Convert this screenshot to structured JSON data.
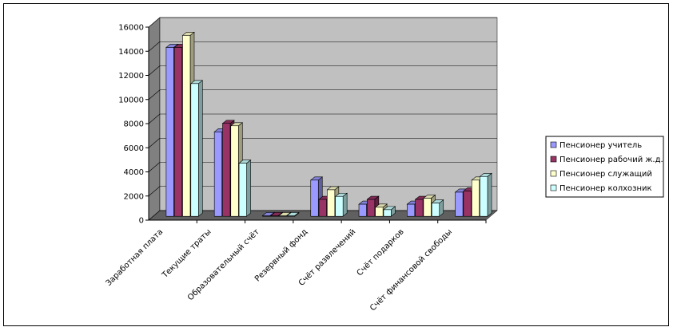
{
  "chart_data": {
    "type": "bar",
    "title": "",
    "xlabel": "",
    "ylabel": "",
    "ylim": [
      0,
      16000
    ],
    "yticks": [
      "0",
      "2000",
      "4000",
      "6000",
      "8000",
      "10000",
      "12000",
      "14000",
      "16000"
    ],
    "grid": true,
    "legend_position": "right",
    "categories": [
      "Заработная плата",
      "Текущие траты",
      "Образовательный счёт",
      "Резервный фонд",
      "Счёт развлечений",
      "Счёт подарков",
      "Счёт финансовой свободы"
    ],
    "series": [
      {
        "name": "Пенсионер учитель",
        "color": "#9999ff",
        "values": [
          14000,
          7000,
          50,
          3000,
          1000,
          1000,
          2000
        ]
      },
      {
        "name": "Пенсионер рабочий ж.д.",
        "color": "#993366",
        "values": [
          14000,
          7700,
          50,
          1400,
          1400,
          1400,
          2100
        ]
      },
      {
        "name": "Пенсионер служащий",
        "color": "#ffffcc",
        "values": [
          15000,
          7500,
          50,
          2200,
          750,
          1500,
          3000
        ]
      },
      {
        "name": "Пенсионер колхозник",
        "color": "#ccffff",
        "values": [
          11000,
          4400,
          50,
          1650,
          550,
          1100,
          3300
        ]
      }
    ],
    "colors": {
      "plot_back": "#c0c0c0",
      "plot_side": "#808080",
      "floor": "#606060"
    }
  }
}
